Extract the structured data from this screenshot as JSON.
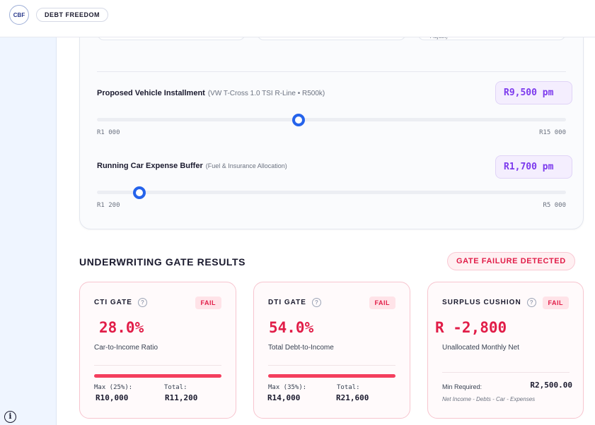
{
  "header": {
    "logo_text": "CBF",
    "brand_label": "DEBT FREEDOM"
  },
  "sidebar": {
    "info_icon": "i"
  },
  "panel": {
    "partial_note": "Adjust)",
    "vehicle": {
      "label": "Proposed Vehicle Installment",
      "sublabel": "(VW T-Cross 1.0 TSI R-Line • R500k)",
      "value": "R9,500 pm",
      "min_label": "R1 000",
      "max_label": "R15 000",
      "level_fraction": 0.43
    },
    "running": {
      "label": "Running Car Expense Buffer",
      "sublabel": "(Fuel & Insurance Allocation)",
      "value": "R1,700 pm",
      "min_label": "R1 200",
      "max_label": "R5 000",
      "level_fraction": 0.09
    }
  },
  "results": {
    "title": "UNDERWRITING GATE RESULTS",
    "alert": "GATE FAILURE DETECTED",
    "gates": [
      {
        "name": "CTI GATE",
        "status": "FAIL",
        "value": "28.0%",
        "description": "Car-to-Income Ratio",
        "limit_label": "Max (25%):",
        "limit_value": "R10,000",
        "total_label": "Total:",
        "total_value": "R11,200"
      },
      {
        "name": "DTI GATE",
        "status": "FAIL",
        "value": "54.0%",
        "description": "Total Debt-to-Income",
        "limit_label": "Max (35%):",
        "limit_value": "R14,000",
        "total_label": "Total:",
        "total_value": "R21,600"
      },
      {
        "name": "SURPLUS CUSHION",
        "status": "FAIL",
        "value": "R -2,800",
        "description": "Unallocated Monthly Net",
        "min_label": "Min Required:",
        "min_value": "R2,500.00",
        "formula": "Net Income - Debts - Car - Expenses"
      }
    ]
  },
  "colors": {
    "accent_blue": "#2563eb",
    "fail_red": "#e11d48",
    "value_purple": "#7c3aed"
  },
  "icons": {
    "help": "?"
  }
}
